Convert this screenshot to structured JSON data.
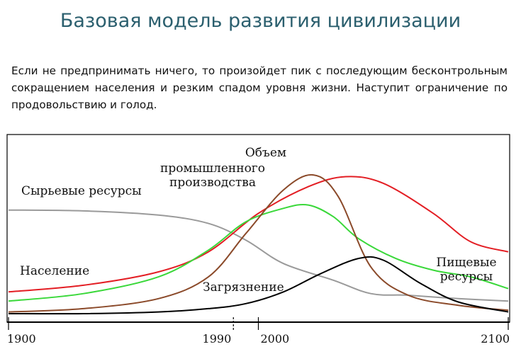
{
  "slide": {
    "title": "Базовая модель развития цивилизации",
    "text": "Если не предпринимать ничего, то произойдет пик с последующим бесконтрольным сокращением населения и резким спадом уровня жизни. Наступит ограничение по продовольствию и голод."
  },
  "chart_data": {
    "type": "line",
    "title": "",
    "xlabel": "",
    "ylabel": "",
    "xlim": [
      1900,
      2100
    ],
    "x_ticks": [
      1900,
      1990,
      2000,
      2100
    ],
    "ylim": [
      0,
      100
    ],
    "grid": false,
    "legend": "inline-labels",
    "series": [
      {
        "name": "Сырьевые ресурсы",
        "color": "#9a9a9a",
        "points": [
          [
            1900,
            62
          ],
          [
            1930,
            61.5
          ],
          [
            1960,
            59
          ],
          [
            1980,
            54
          ],
          [
            1995,
            44
          ],
          [
            2010,
            30
          ],
          [
            2030,
            20
          ],
          [
            2045,
            12
          ],
          [
            2060,
            11
          ],
          [
            2080,
            9
          ],
          [
            2100,
            7.5
          ]
        ]
      },
      {
        "name": "Население",
        "color": "#e31e24",
        "points": [
          [
            1900,
            13
          ],
          [
            1930,
            17
          ],
          [
            1960,
            25
          ],
          [
            1980,
            37
          ],
          [
            2000,
            60
          ],
          [
            2020,
            76
          ],
          [
            2035,
            82
          ],
          [
            2050,
            78
          ],
          [
            2070,
            60
          ],
          [
            2085,
            43
          ],
          [
            2100,
            37
          ]
        ]
      },
      {
        "name": "Пищевые ресурсы",
        "color": "#3ad83a",
        "points": [
          [
            1900,
            7.5
          ],
          [
            1930,
            12
          ],
          [
            1960,
            22
          ],
          [
            1980,
            38
          ],
          [
            1995,
            55
          ],
          [
            2010,
            63
          ],
          [
            2020,
            65
          ],
          [
            2030,
            58
          ],
          [
            2040,
            45
          ],
          [
            2055,
            33
          ],
          [
            2070,
            26
          ],
          [
            2085,
            22
          ],
          [
            2100,
            15
          ]
        ]
      },
      {
        "name": "Объем промышленного производства",
        "color": "#8b4a2a",
        "points": [
          [
            1900,
            1
          ],
          [
            1930,
            3
          ],
          [
            1960,
            9
          ],
          [
            1980,
            22
          ],
          [
            1995,
            48
          ],
          [
            2010,
            74
          ],
          [
            2022,
            83
          ],
          [
            2032,
            70
          ],
          [
            2045,
            28
          ],
          [
            2060,
            11
          ],
          [
            2080,
            5
          ],
          [
            2100,
            2
          ]
        ]
      },
      {
        "name": "Загрязнение",
        "color": "#000000",
        "points": [
          [
            1900,
            0
          ],
          [
            1930,
            0
          ],
          [
            1960,
            1
          ],
          [
            1980,
            3
          ],
          [
            1995,
            6
          ],
          [
            2010,
            13
          ],
          [
            2025,
            24
          ],
          [
            2040,
            33
          ],
          [
            2050,
            32
          ],
          [
            2065,
            18
          ],
          [
            2080,
            7
          ],
          [
            2100,
            1
          ]
        ]
      }
    ],
    "annotations": [
      {
        "text": "Объем",
        "series": "Объем промышленного производства"
      },
      {
        "text": "промышленного",
        "series": "Объем промышленного производства"
      },
      {
        "text": "производства",
        "series": "Объем промышленного производства"
      },
      {
        "text": "Сырьевые ресурсы",
        "series": "Сырьевые ресурсы"
      },
      {
        "text": "Население",
        "series": "Население"
      },
      {
        "text": "Пищевые",
        "series": "Пищевые ресурсы"
      },
      {
        "text": "ресурсы",
        "series": "Пищевые ресурсы"
      },
      {
        "text": "Загрязнение",
        "series": "Загрязнение"
      }
    ]
  }
}
